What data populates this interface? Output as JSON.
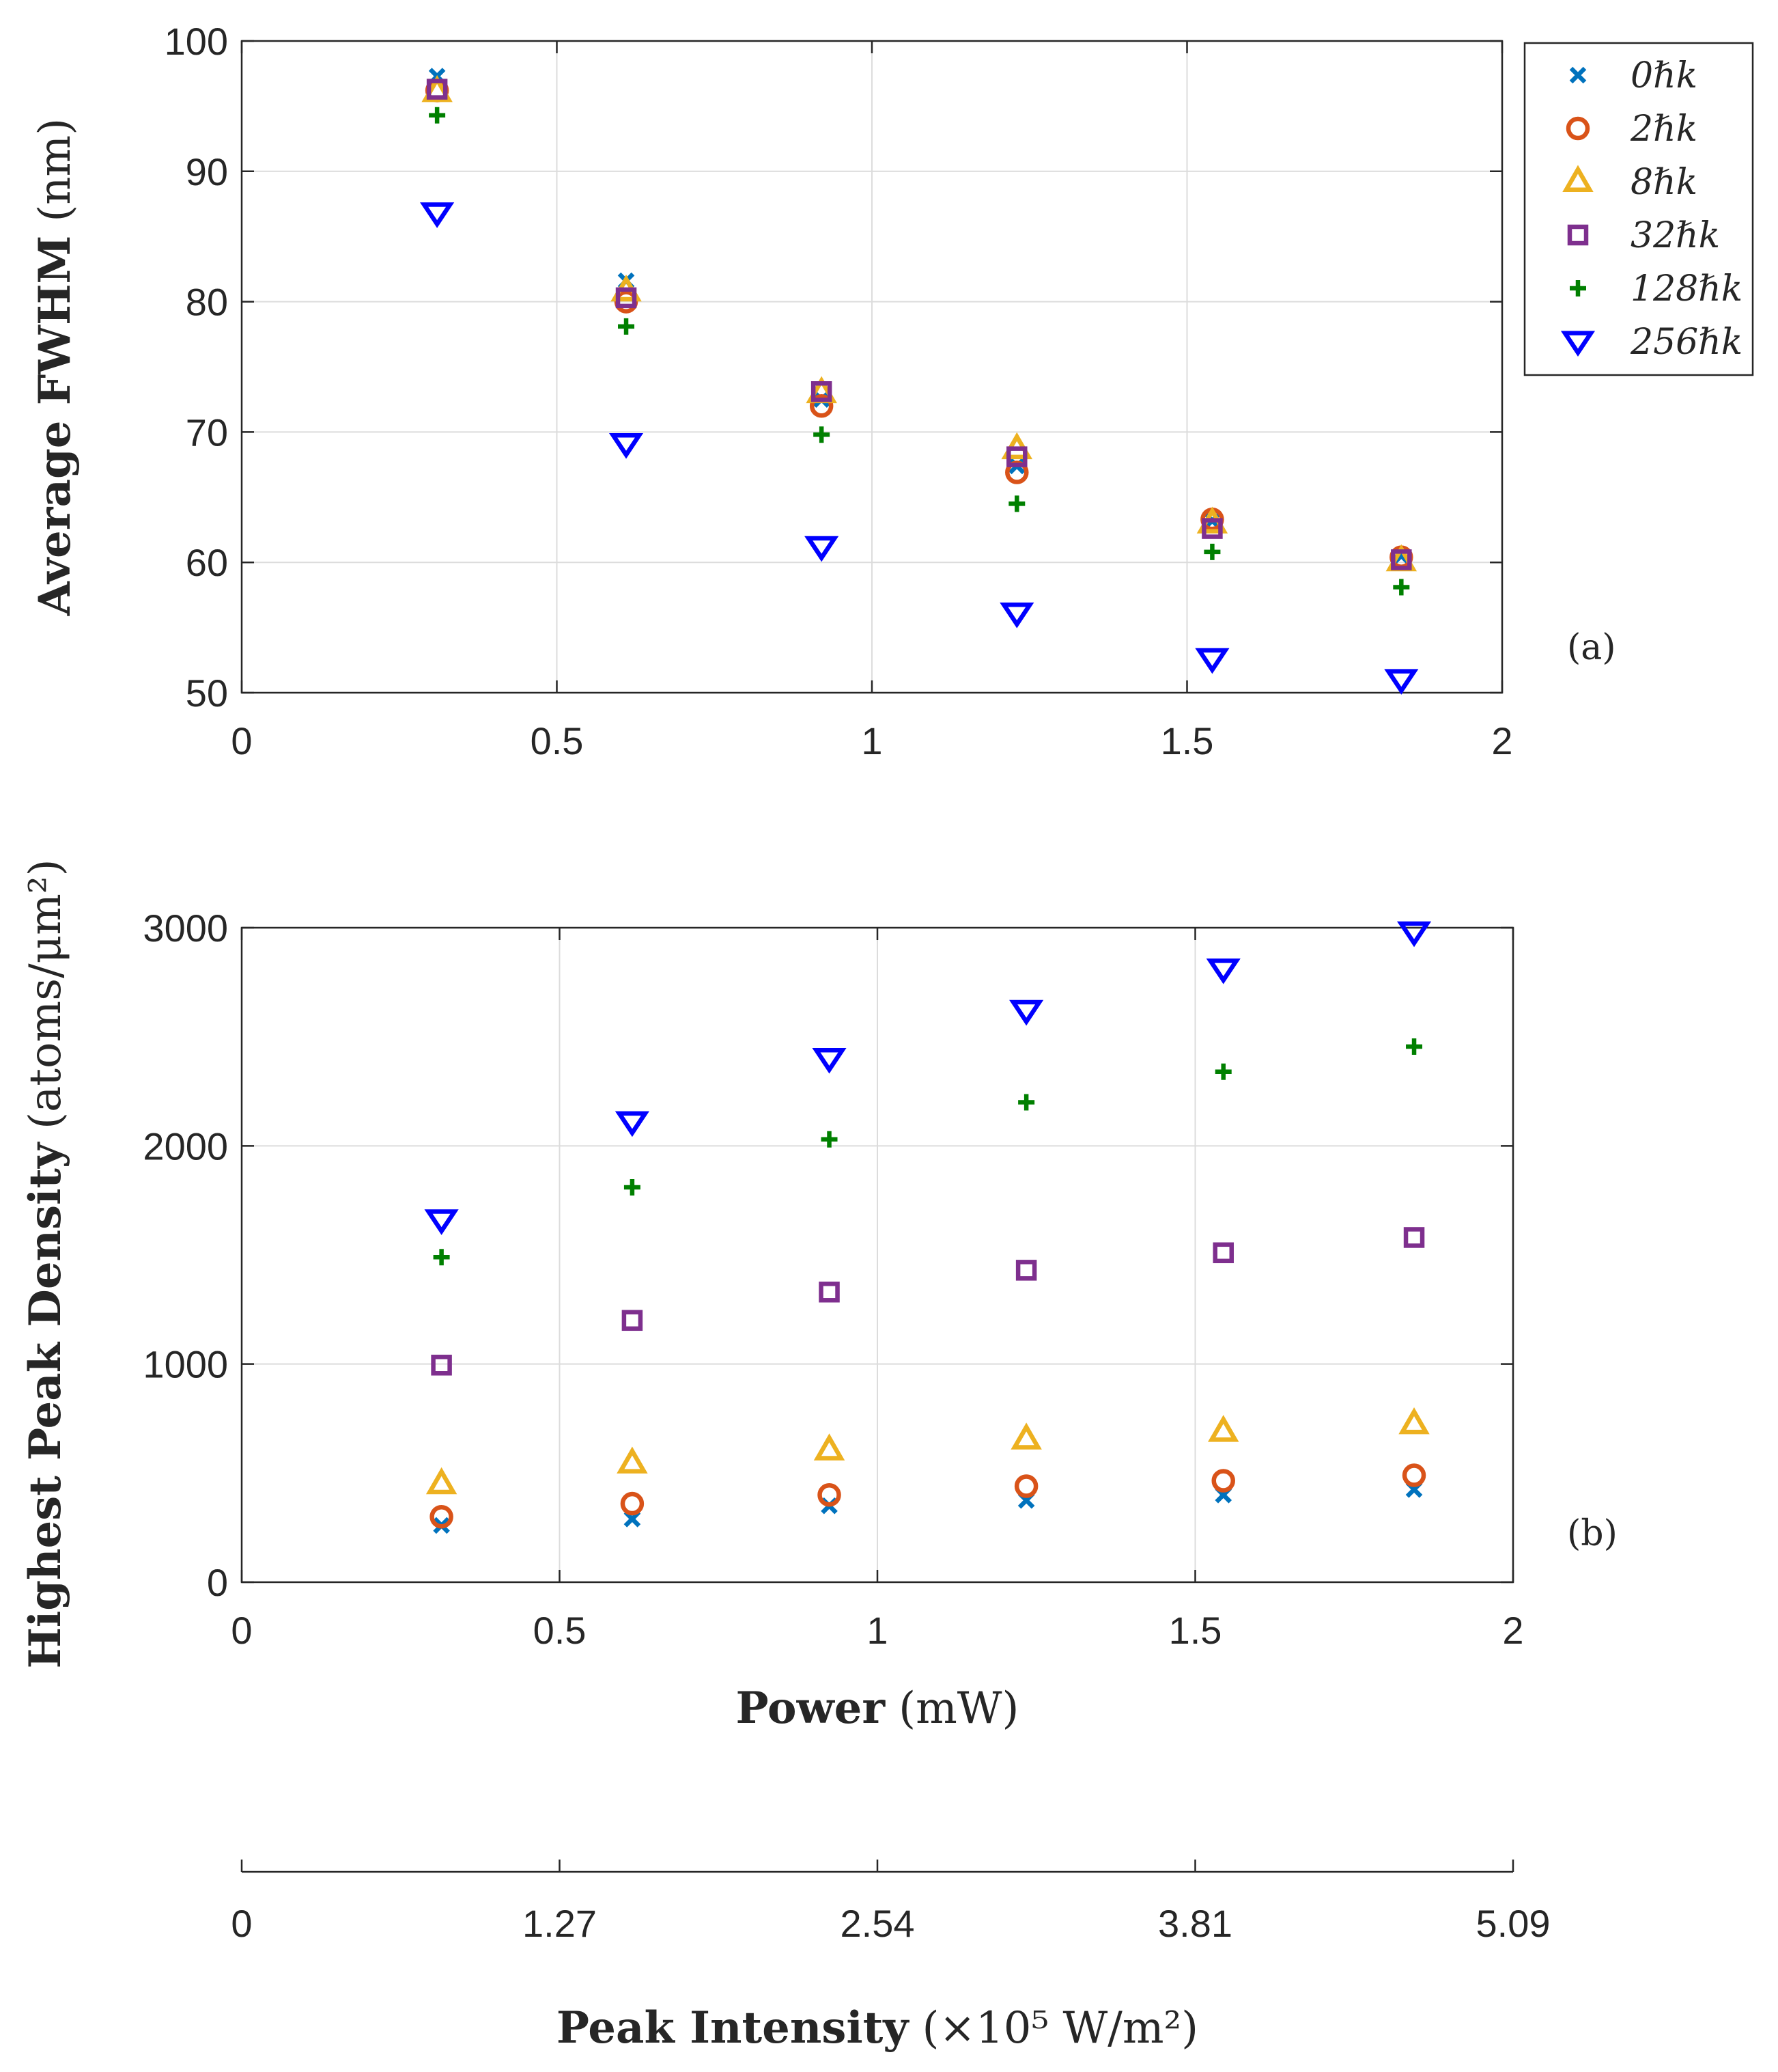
{
  "chart_data": [
    {
      "id": "a",
      "type": "scatter",
      "panel_label": "(a)",
      "ylabel_bold": "Average FWHM",
      "ylabel_unit": "(nm)",
      "xlim": [
        0,
        2
      ],
      "ylim": [
        50,
        100
      ],
      "xticks": [
        "0",
        "0.5",
        "1",
        "1.5",
        "2"
      ],
      "yticks": [
        "50",
        "60",
        "70",
        "80",
        "90",
        "100"
      ],
      "x": [
        0.31,
        0.61,
        0.92,
        1.23,
        1.54,
        1.84
      ],
      "series": [
        {
          "name": "0ℏk",
          "values": [
            97.3,
            81.6,
            72.5,
            67.4,
            63.2,
            60.5
          ]
        },
        {
          "name": "2ℏk",
          "values": [
            96.2,
            80.0,
            72.0,
            66.9,
            63.3,
            60.4
          ]
        },
        {
          "name": "8ℏk",
          "values": [
            96.1,
            80.8,
            73.0,
            68.7,
            63.0,
            60.1
          ]
        },
        {
          "name": "32ℏk",
          "values": [
            96.3,
            80.3,
            73.1,
            68.1,
            62.6,
            60.2
          ]
        },
        {
          "name": "128ℏk",
          "values": [
            94.3,
            78.1,
            69.8,
            64.5,
            60.8,
            58.1
          ]
        },
        {
          "name": "256ℏk",
          "values": [
            86.8,
            69.1,
            61.2,
            56.1,
            52.6,
            51.0
          ]
        }
      ]
    },
    {
      "id": "b",
      "type": "scatter",
      "panel_label": "(b)",
      "ylabel_bold": "Highest Peak Density",
      "ylabel_unit": "(atoms/μm²)",
      "xlabel_bold": "Power",
      "xlabel_unit": "(mW)",
      "xlim": [
        0,
        2
      ],
      "ylim": [
        0,
        3000
      ],
      "xticks": [
        "0",
        "0.5",
        "1",
        "1.5",
        "2"
      ],
      "yticks": [
        "0",
        "1000",
        "2000",
        "3000"
      ],
      "x": [
        0.31,
        0.61,
        0.92,
        1.23,
        1.54,
        1.84
      ],
      "series": [
        {
          "name": "0ℏk",
          "values": [
            260,
            290,
            350,
            375,
            400,
            425
          ]
        },
        {
          "name": "2ℏk",
          "values": [
            300,
            360,
            400,
            440,
            465,
            490
          ]
        },
        {
          "name": "8ℏk",
          "values": [
            450,
            545,
            605,
            655,
            690,
            725
          ]
        },
        {
          "name": "32ℏk",
          "values": [
            995,
            1200,
            1330,
            1430,
            1510,
            1580
          ]
        },
        {
          "name": "128ℏk",
          "values": [
            1490,
            1810,
            2030,
            2200,
            2340,
            2455
          ]
        },
        {
          "name": "256ℏk",
          "values": [
            1660,
            2110,
            2400,
            2620,
            2810,
            2980
          ]
        }
      ]
    }
  ],
  "series_colors": {
    "0ℏk": "#0072BD",
    "2ℏk": "#D95319",
    "8ℏk": "#EDB120",
    "32ℏk": "#7E2F8E",
    "128ℏk": "#008000",
    "256ℏk": "#0000FF"
  },
  "series_markers": {
    "0ℏk": "x",
    "2ℏk": "circle",
    "8ℏk": "triangle-up",
    "32ℏk": "square",
    "128ℏk": "plus",
    "256ℏk": "triangle-down"
  },
  "legend": [
    "0ℏk",
    "2ℏk",
    "8ℏk",
    "32ℏk",
    "128ℏk",
    "256ℏk"
  ],
  "secondary_axis": {
    "ticks": [
      "0",
      "1.27",
      "2.54",
      "3.81",
      "5.09"
    ],
    "label_bold": "Peak Intensity",
    "label_unit": "(×10⁵ W/m²)"
  }
}
